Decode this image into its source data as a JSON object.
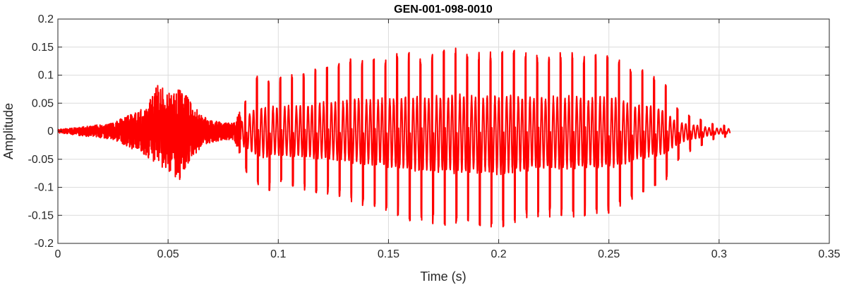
{
  "chart_data": {
    "type": "line",
    "title": "GEN-001-098-0010",
    "xlabel": "Time (s)",
    "ylabel": "Amplitude",
    "xlim": [
      0,
      0.35
    ],
    "ylim": [
      -0.2,
      0.2
    ],
    "grid": true,
    "xticks": [
      0,
      0.05,
      0.1,
      0.15,
      0.2,
      0.25,
      0.3,
      0.35
    ],
    "xtick_labels": [
      "0",
      "0.05",
      "0.1",
      "0.15",
      "0.2",
      "0.25",
      "0.3",
      "0.35"
    ],
    "yticks": [
      -0.2,
      -0.15,
      -0.1,
      -0.05,
      0,
      0.05,
      0.1,
      0.15,
      0.2
    ],
    "ytick_labels": [
      "-0.2",
      "-0.15",
      "-0.1",
      "-0.05",
      "0",
      "0.05",
      "0.1",
      "0.15",
      "0.2"
    ],
    "series": [
      {
        "color": "#ff0000",
        "x": [
          0,
          0.005,
          0.01,
          0.015,
          0.02,
          0.025,
          0.03,
          0.035,
          0.04,
          0.045,
          0.05,
          0.055,
          0.06,
          0.065,
          0.07,
          0.075,
          0.08,
          0.085,
          0.09,
          0.095,
          0.1,
          0.105,
          0.11,
          0.115,
          0.12,
          0.125,
          0.13,
          0.135,
          0.14,
          0.145,
          0.15,
          0.155,
          0.16,
          0.165,
          0.17,
          0.175,
          0.18,
          0.185,
          0.19,
          0.195,
          0.2,
          0.205,
          0.21,
          0.215,
          0.22,
          0.225,
          0.23,
          0.235,
          0.24,
          0.245,
          0.25,
          0.255,
          0.26,
          0.265,
          0.27,
          0.275,
          0.28,
          0.285,
          0.29,
          0.295,
          0.3,
          0.305
        ],
        "upper_envelope": [
          0.003,
          0.005,
          0.007,
          0.01,
          0.012,
          0.015,
          0.025,
          0.035,
          0.045,
          0.085,
          0.07,
          0.09,
          0.055,
          0.03,
          0.02,
          0.015,
          0.015,
          0.055,
          0.1,
          0.1,
          0.1,
          0.105,
          0.105,
          0.11,
          0.12,
          0.125,
          0.13,
          0.135,
          0.13,
          0.13,
          0.135,
          0.14,
          0.145,
          0.14,
          0.14,
          0.145,
          0.15,
          0.145,
          0.14,
          0.145,
          0.145,
          0.15,
          0.14,
          0.14,
          0.14,
          0.14,
          0.14,
          0.145,
          0.135,
          0.14,
          0.14,
          0.13,
          0.11,
          0.11,
          0.105,
          0.09,
          0.045,
          0.03,
          0.025,
          0.015,
          0.012,
          0.01
        ],
        "lower_envelope": [
          -0.003,
          -0.005,
          -0.008,
          -0.01,
          -0.012,
          -0.015,
          -0.025,
          -0.035,
          -0.045,
          -0.06,
          -0.07,
          -0.09,
          -0.05,
          -0.03,
          -0.02,
          -0.015,
          -0.015,
          -0.07,
          -0.1,
          -0.11,
          -0.1,
          -0.1,
          -0.105,
          -0.11,
          -0.11,
          -0.115,
          -0.12,
          -0.13,
          -0.135,
          -0.14,
          -0.15,
          -0.155,
          -0.16,
          -0.16,
          -0.165,
          -0.17,
          -0.17,
          -0.165,
          -0.17,
          -0.17,
          -0.175,
          -0.17,
          -0.165,
          -0.16,
          -0.155,
          -0.155,
          -0.155,
          -0.155,
          -0.15,
          -0.15,
          -0.15,
          -0.14,
          -0.125,
          -0.11,
          -0.1,
          -0.095,
          -0.06,
          -0.04,
          -0.03,
          -0.02,
          -0.012,
          -0.01
        ]
      }
    ]
  }
}
